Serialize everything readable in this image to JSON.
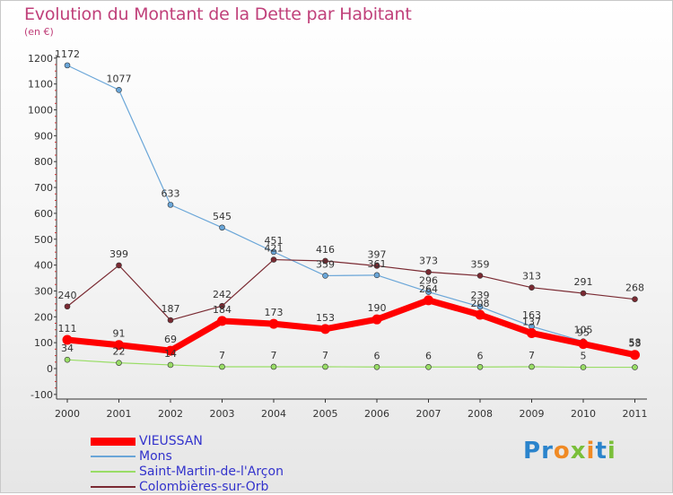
{
  "chart_data": {
    "type": "line",
    "title": "Evolution du Montant de la Dette par Habitant",
    "unit": "(en €)",
    "x": [
      "2000",
      "2001",
      "2002",
      "2003",
      "2004",
      "2005",
      "2006",
      "2007",
      "2008",
      "2009",
      "2010",
      "2011"
    ],
    "ylim": [
      -100,
      1200
    ],
    "yticks": [
      -100,
      0,
      100,
      200,
      300,
      400,
      500,
      600,
      700,
      800,
      900,
      1000,
      1100,
      1200
    ],
    "grid": false,
    "legend_position": "bottom-left",
    "series": [
      {
        "name": "VIEUSSAN",
        "values": [
          111,
          91,
          69,
          184,
          173,
          153,
          190,
          264,
          208,
          137,
          95,
          53
        ],
        "labels": [
          "111",
          "91",
          "69",
          "184",
          "173",
          "153",
          "190",
          "264",
          "208",
          "137",
          "95",
          "53"
        ],
        "color": "#ff0000"
      },
      {
        "name": "Mons",
        "values": [
          1172,
          1077,
          633,
          545,
          451,
          359,
          361,
          296,
          239,
          163,
          105,
          58
        ],
        "labels": [
          "1172",
          "1077",
          "633",
          "545",
          "451",
          "359",
          "361",
          "296",
          "239",
          "163",
          "105",
          "58"
        ],
        "color": "#6aa6d8"
      },
      {
        "name": "Saint-Martin-de-l'Arçon",
        "values": [
          34,
          22,
          14,
          7,
          7,
          7,
          6,
          6,
          6,
          7,
          5,
          5
        ],
        "labels": [
          "34",
          "22",
          "14",
          "7",
          "7",
          "7",
          "6",
          "6",
          "6",
          "7",
          "5",
          ""
        ],
        "color": "#99dd66"
      },
      {
        "name": "Colombières-sur-Orb",
        "values": [
          240,
          399,
          187,
          242,
          421,
          416,
          397,
          373,
          359,
          313,
          291,
          268
        ],
        "labels": [
          "240",
          "399",
          "187",
          "242",
          "421",
          "416",
          "397",
          "373",
          "359",
          "313",
          "291",
          "268"
        ],
        "color": "#7a2a32"
      }
    ]
  },
  "logo": {
    "letters": [
      "P",
      "r",
      "o",
      "x",
      "i",
      "t",
      "i"
    ],
    "colors": [
      "#2b84cc",
      "#2b84cc",
      "#f08a24",
      "#7abf3a",
      "#f08a24",
      "#2b84cc",
      "#7abf3a"
    ]
  }
}
